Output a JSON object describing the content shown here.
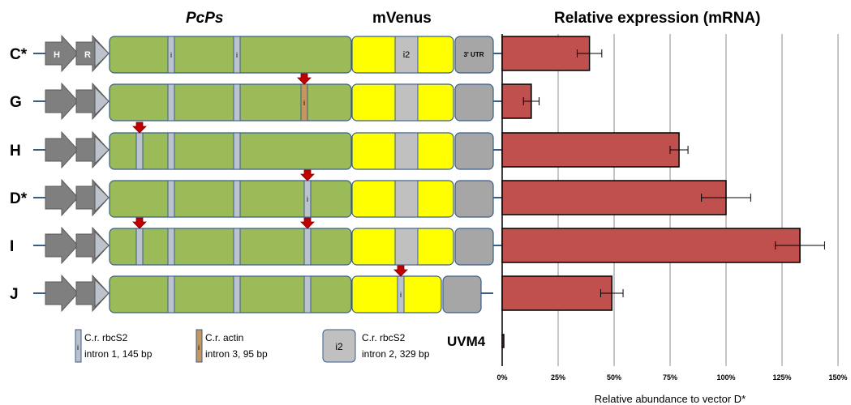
{
  "headers": {
    "gene": "PcPs",
    "reporter": "mVenus",
    "chart_title": "Relative expression (mRNA)"
  },
  "promoter_labels": {
    "h": "H",
    "r": "R"
  },
  "box_labels": {
    "intron_small": "i",
    "intron_large": "i2",
    "utr": "3' UTR"
  },
  "constructs": [
    {
      "label": "C*",
      "pcps_introns": [
        {
          "type": "rbcs2",
          "marked": false,
          "labeled": true
        },
        {
          "type": "rbcs2",
          "marked": false,
          "labeled": true
        }
      ],
      "venus_intron": "i2",
      "utr_labeled": true
    },
    {
      "label": "G",
      "pcps_introns": [
        {
          "type": "rbcs2",
          "marked": false
        },
        {
          "type": "rbcs2",
          "marked": false
        },
        {
          "type": "actin",
          "marked": true,
          "labeled": true
        }
      ],
      "venus_intron": "i2"
    },
    {
      "label": "H",
      "pcps_introns": [
        {
          "type": "rbcs2",
          "marked": true
        },
        {
          "type": "rbcs2",
          "marked": false
        },
        {
          "type": "rbcs2",
          "marked": false
        }
      ],
      "venus_intron": "i2"
    },
    {
      "label": "D*",
      "pcps_introns": [
        {
          "type": "rbcs2",
          "marked": false
        },
        {
          "type": "rbcs2",
          "marked": false
        },
        {
          "type": "rbcs2",
          "marked": true,
          "labeled": true
        }
      ],
      "venus_intron": "i2"
    },
    {
      "label": "I",
      "pcps_introns": [
        {
          "type": "rbcs2",
          "marked": true
        },
        {
          "type": "rbcs2",
          "marked": false
        },
        {
          "type": "rbcs2",
          "marked": false
        },
        {
          "type": "rbcs2",
          "marked": true
        }
      ],
      "venus_intron": "i2"
    },
    {
      "label": "J",
      "pcps_introns": [
        {
          "type": "rbcs2",
          "marked": false
        },
        {
          "type": "rbcs2",
          "marked": false
        },
        {
          "type": "rbcs2",
          "marked": false
        }
      ],
      "venus_intron": "i",
      "venus_marked": true
    }
  ],
  "legend": [
    {
      "key": "rbcs2_i1",
      "symbol": "i",
      "line1": "C.r. rbcS2",
      "line2": "intron 1, 145 bp",
      "color": "#b9c2cc"
    },
    {
      "key": "actin_i3",
      "symbol": "i",
      "line1": "C.r. actin",
      "line2": "intron 3, 95 bp",
      "color": "#c8955b"
    },
    {
      "key": "rbcs2_i2",
      "symbol": "i2",
      "line1": "C.r. rbcS2",
      "line2": "intron 2, 329 bp",
      "color": "#c0c0c0"
    }
  ],
  "colors": {
    "promoter": "#7f7f7f",
    "promoter_tip": "#bcc3cc",
    "pcps": "#9bbb59",
    "venus": "#ffff00",
    "intron": "#bcc3cc",
    "actin_intron": "#c8955b",
    "utr": "#a6a6a6",
    "border": "#385d8a",
    "bar": "#c0504d",
    "marker": "#c00000"
  },
  "chart_data": {
    "type": "bar",
    "orientation": "horizontal",
    "title": "Relative expression (mRNA)",
    "xlabel": "Relative abundance to vector D*",
    "categories": [
      "C*",
      "G",
      "H",
      "D*",
      "I",
      "J",
      "UVM4"
    ],
    "values": [
      39,
      13,
      79,
      100,
      133,
      49,
      0.5
    ],
    "errors": [
      5.5,
      3.5,
      4,
      11,
      11,
      5,
      0
    ],
    "xlim": [
      0,
      150
    ],
    "xticks": [
      "0%",
      "25%",
      "50%",
      "75%",
      "100%",
      "125%",
      "150%"
    ],
    "grid": true
  }
}
